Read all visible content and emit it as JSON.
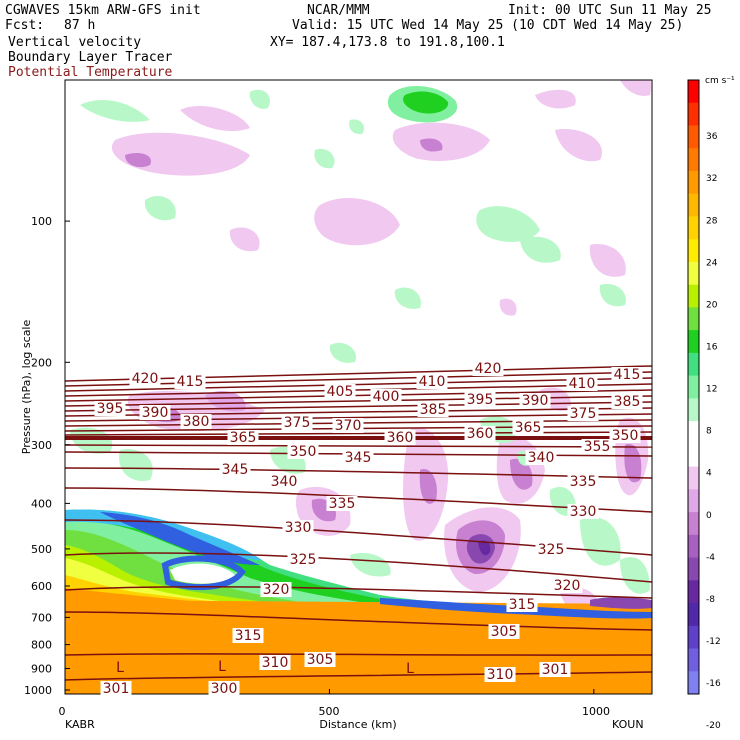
{
  "header": {
    "model": "CGWAVES 15km ARW-GFS init",
    "fcst_label": "Fcst:",
    "fcst_value": "87 h",
    "field1": "Vertical velocity",
    "field2": "Boundary Layer Tracer",
    "field3": "Potential Temperature",
    "field3_color": "#8b1a1a",
    "org": "NCAR/MMM",
    "init": "Init: 00 UTC Sun 11 May 25",
    "valid": "Valid: 15 UTC Wed 14 May 25 (10 CDT Wed 14 May 25)",
    "xy": "XY= 187.4,173.8 to 191.8,100.1"
  },
  "chart_data": {
    "type": "heatmap",
    "xlabel": "Distance (km)",
    "ylabel": "Pressure (hPa), log scale",
    "x_ticks": [
      0,
      500,
      1000
    ],
    "y_ticks": [
      100,
      200,
      300,
      400,
      500,
      600,
      700,
      800,
      900,
      1000
    ],
    "left_station": "KABR",
    "right_station": "KOUN",
    "colorbar": {
      "unit": "cm s⁻¹",
      "labels": [
        "36",
        "32",
        "28",
        "24",
        "20",
        "16",
        "12",
        "8",
        "4",
        "0",
        "-4",
        "-8",
        "-12",
        "-16",
        "-20"
      ],
      "colors": [
        "#ff0000",
        "#ff3000",
        "#ff5a00",
        "#ff7a00",
        "#ff9a00",
        "#ffb800",
        "#ffd200",
        "#ffec00",
        "#f0ff40",
        "#b8f000",
        "#70e040",
        "#20d020",
        "#40e080",
        "#80f0a0",
        "#b8f8c8",
        "#ffffff",
        "#ffffff",
        "#f0c8f0",
        "#e0a8e8",
        "#c880d0",
        "#a860c0",
        "#8848b0",
        "#6828a0",
        "#5028a8",
        "#6040c8",
        "#7060e0",
        "#8080f0"
      ]
    },
    "theta_labels": [
      "420",
      "415",
      "410",
      "420",
      "410",
      "415",
      "395",
      "390",
      "380",
      "375",
      "370",
      "405",
      "400",
      "385",
      "395",
      "390",
      "375",
      "385",
      "365",
      "360",
      "360",
      "365",
      "355",
      "350",
      "350",
      "345",
      "345",
      "340",
      "340",
      "335",
      "335",
      "330",
      "330",
      "325",
      "325",
      "320",
      "320",
      "315",
      "315",
      "305",
      "310",
      "305",
      "310",
      "301",
      "301",
      "300"
    ],
    "low_labels": [
      "L",
      "L",
      "L"
    ]
  }
}
